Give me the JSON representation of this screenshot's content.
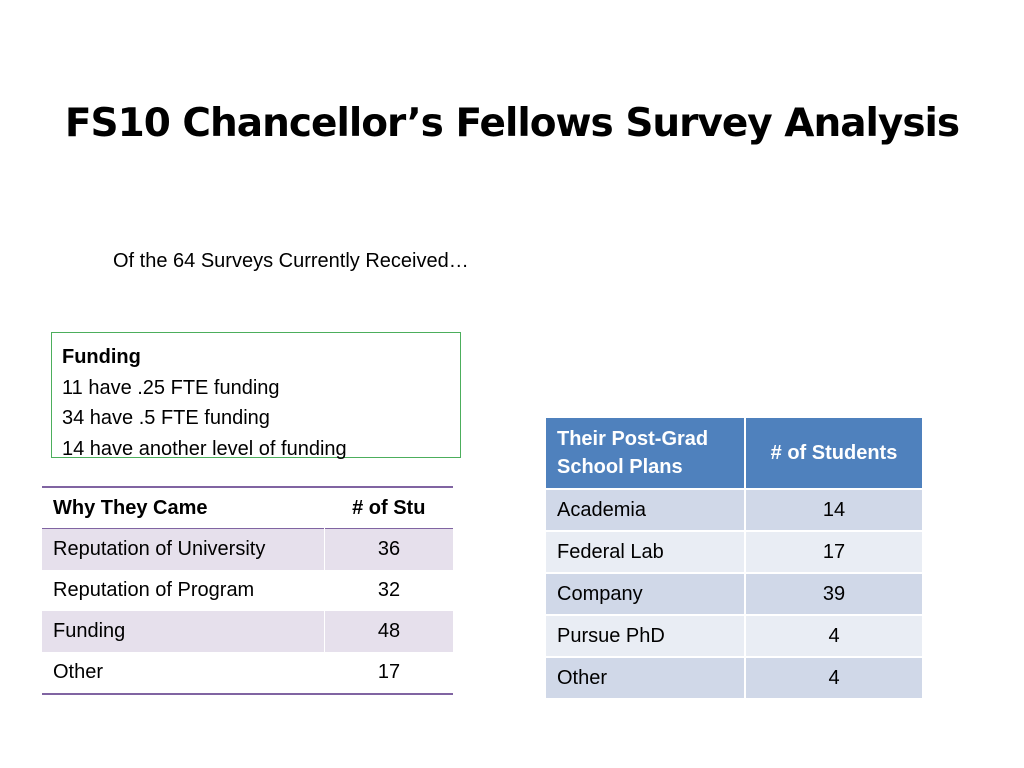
{
  "slide": {
    "title": "FS10 Chancellor’s Fellows Survey Analysis",
    "subtitle": "Of the 64 Surveys Currently Received…"
  },
  "funding": {
    "heading": "Funding",
    "lines": [
      "11 have .25 FTE funding",
      "34 have .5 FTE funding",
      "14 have another level of funding"
    ]
  },
  "why_table": {
    "headers": [
      "Why They Came",
      "# of Stu"
    ],
    "rows": [
      {
        "reason": "Reputation of University",
        "count": "36"
      },
      {
        "reason": "Reputation of Program",
        "count": "32"
      },
      {
        "reason": "Funding",
        "count": "48"
      },
      {
        "reason": "Other",
        "count": "17"
      }
    ],
    "colors": {
      "accent": "#8064a2",
      "band": "#e6e0ec"
    }
  },
  "plans_table": {
    "headers": [
      "Their Post-Grad School Plans",
      "# of Students"
    ],
    "rows": [
      {
        "plan": "Academia",
        "count": "14"
      },
      {
        "plan": "Federal Lab",
        "count": "17"
      },
      {
        "plan": "Company",
        "count": "39"
      },
      {
        "plan": "Pursue PhD",
        "count": "4"
      },
      {
        "plan": "Other",
        "count": "4"
      }
    ],
    "colors": {
      "header": "#4f81bd",
      "band_dark": "#d0d8e8",
      "band_light": "#e9edf4"
    }
  },
  "colors": {
    "funding_border": "#4cae5c"
  }
}
